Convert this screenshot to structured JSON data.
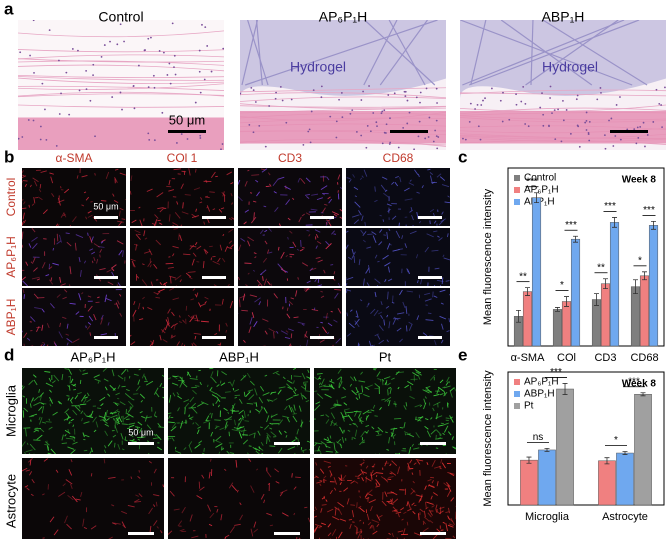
{
  "panel_a": {
    "label": "a",
    "images": [
      "Control",
      "AP₆P₁H",
      "ABP₁H"
    ],
    "hydrogel": [
      "Hydrogel",
      "Hydrogel"
    ],
    "scale": "50 μm"
  },
  "panel_b": {
    "label": "b",
    "columns": [
      "α-SMA",
      "COl 1",
      "CD3",
      "CD68"
    ],
    "rows": [
      "Control",
      "AP₆P₁H",
      "ABP₁H"
    ],
    "scale": "50 μm"
  },
  "panel_d": {
    "label": "d",
    "columns": [
      "AP₆P₁H",
      "ABP₁H",
      "Pt"
    ],
    "rows": [
      "Microglia",
      "Astrocyte"
    ],
    "scale": "50 μm"
  },
  "chart_data": [
    {
      "type": "bar",
      "panel_label": "c",
      "y_label": "Mean fluorescence intensity",
      "annotation": "Week 8",
      "categories": [
        "α-SMA",
        "COl",
        "CD3",
        "CD68"
      ],
      "series": [
        {
          "name": "Control",
          "color": "#7f7f7f",
          "values": [
            30,
            37,
            47,
            60
          ],
          "errors": [
            6,
            2,
            6,
            7
          ]
        },
        {
          "name": "AP₆P₁H",
          "color": "#f08080",
          "values": [
            55,
            45,
            63,
            71
          ],
          "errors": [
            4,
            5,
            5,
            4
          ]
        },
        {
          "name": "ABP₁H",
          "color": "#6fa8ef",
          "values": [
            150,
            108,
            125,
            122
          ],
          "errors": [
            5,
            3,
            5,
            4
          ]
        }
      ],
      "significance": [
        [
          "**",
          "***"
        ],
        [
          "*",
          "***"
        ],
        [
          "**",
          "***"
        ],
        [
          "*",
          "***"
        ]
      ],
      "ylim": [
        0,
        180
      ],
      "legend": "upper left"
    },
    {
      "type": "bar",
      "panel_label": "e",
      "y_label": "Mean fluorescence intensity",
      "annotation": "Week 8",
      "categories": [
        "Microglia",
        "Astrocyte"
      ],
      "series": [
        {
          "name": "AP₆P₁H",
          "color": "#f08080",
          "values": [
            145,
            143
          ],
          "errors": [
            10,
            10
          ]
        },
        {
          "name": "ABP₁H",
          "color": "#6fa8ef",
          "values": [
            178,
            168
          ],
          "errors": [
            5,
            5
          ]
        },
        {
          "name": "Pt",
          "color": "#a0a0a0",
          "values": [
            375,
            358
          ],
          "errors": [
            18,
            5
          ]
        }
      ],
      "significance": [
        [
          "ns",
          "***"
        ],
        [
          "*",
          "***"
        ]
      ],
      "ylim": [
        0,
        430
      ],
      "legend": "upper left"
    }
  ]
}
